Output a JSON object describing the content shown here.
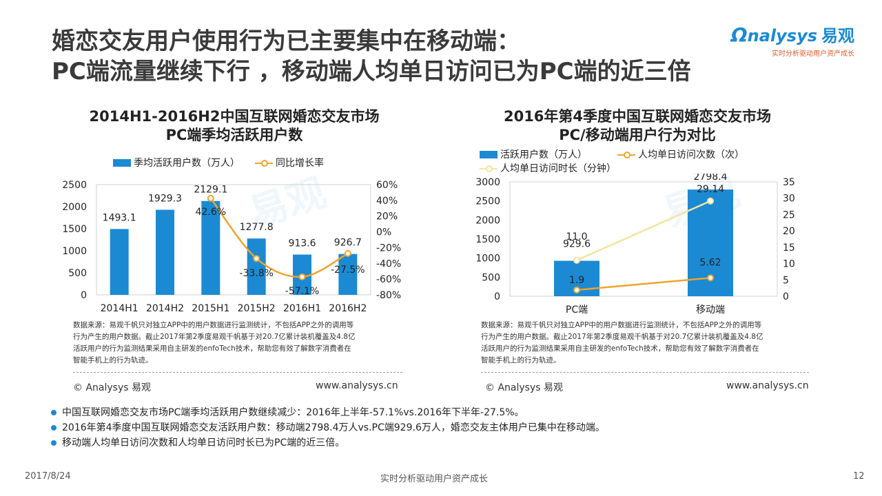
{
  "header": {
    "title_line1": "婚恋交友用户使用行为已主要集中在移动端：",
    "title_line2": "PC端流量继续下行 ，移动端人均单日访问已为PC端的近三倍"
  },
  "logo": {
    "name": "nalysys",
    "name_cn": "易观",
    "tagline": "实时分析驱动用户资产成长"
  },
  "watermark": {
    "text": "易观"
  },
  "left_panel": {
    "title_line1": "2014H1-2016H2中国互联网婚恋交友市场",
    "title_line2": "PC端季均活跃用户数",
    "legend_bar": "季均活跃用户数（万人）",
    "legend_line": "同比增长率",
    "source_line1": "数据来源：易观千帆只对独立APP中的用户数据进行监测统计，不包括APP之外的调用等",
    "source_line2": "行为产生的用户数据。截止2017年第2季度易观千帆基于对20.7亿累计装机覆盖及4.8亿",
    "source_line3": "活跃用户的行为监测结果采用自主研发的enfoTech技术，帮助您有效了解数字消费者在",
    "source_line4": "智能手机上的行为轨迹。",
    "credit_left": "© Analysys 易观",
    "credit_right": "www.analysys.cn"
  },
  "right_panel": {
    "title_line1": "2016年第4季度中国互联网婚恋交友市场",
    "title_line2": "PC/移动端用户行为对比",
    "legend_bar": "活跃用户数（万人）",
    "legend_line1": "人均单日访问次数（次）",
    "legend_line2": "人均单日访问时长（分钟）",
    "source_line1": "数据来源：易观千帆只对独立APP中的用户数据进行监测统计，不包括APP之外的调用等",
    "source_line2": "行为产生的用户数据。截止2017年第2季度易观千帆基于对20.7亿累计装机覆盖及4.8亿",
    "source_line3": "活跃用户的行为监测结果采用自主研发的enfoTech技术，帮助您有效了解数字消费者在",
    "source_line4": "智能手机上的行为轨迹。",
    "credit_left": "© Analysys 易观",
    "credit_right": "www.analysys.cn"
  },
  "chart_data": [
    {
      "type": "bar",
      "title": "2014H1-2016H2中国互联网婚恋交友市场 PC端季均活跃用户数",
      "categories": [
        "2014H1",
        "2014H2",
        "2015H1",
        "2015H2",
        "2016H1",
        "2016H2"
      ],
      "series": [
        {
          "name": "季均活跃用户数（万人）",
          "chart": "bar",
          "axis": "left",
          "values": [
            1493.1,
            1929.3,
            2129.1,
            1277.8,
            913.6,
            926.7
          ],
          "labels": [
            "1493.1",
            "1929.3",
            "2129.1",
            "1277.8",
            "913.6",
            "926.7"
          ],
          "color": "#1b8ad3"
        },
        {
          "name": "同比增长率",
          "chart": "line",
          "axis": "right",
          "values": [
            null,
            null,
            42.6,
            -33.8,
            -57.1,
            -27.5
          ],
          "labels": [
            "",
            "",
            "42.6%",
            "-33.8%",
            "-57.1%",
            "-27.5%"
          ],
          "color": "#f0a32a"
        }
      ],
      "y_left": {
        "min": 0,
        "max": 2500,
        "ticks": [
          "0",
          "500",
          "1000",
          "1500",
          "2000",
          "2500"
        ]
      },
      "y_right": {
        "min": -80,
        "max": 60,
        "ticks": [
          "-80%",
          "-60%",
          "-40%",
          "-20%",
          "0%",
          "20%",
          "40%",
          "60%"
        ]
      }
    },
    {
      "type": "bar",
      "title": "2016年第4季度中国互联网婚恋交友市场 PC/移动端用户行为对比",
      "categories": [
        "PC端",
        "移动端"
      ],
      "series": [
        {
          "name": "活跃用户数（万人）",
          "chart": "bar",
          "axis": "left",
          "values": [
            929.6,
            2798.4
          ],
          "labels": [
            "929.6",
            "2798.4"
          ],
          "color": "#1b8ad3"
        },
        {
          "name": "人均单日访问次数（次）",
          "chart": "line",
          "axis": "right",
          "values": [
            1.9,
            5.62
          ],
          "labels": [
            "1.9",
            "5.62"
          ],
          "color": "#f0a32a"
        },
        {
          "name": "人均单日访问时长（分钟）",
          "chart": "line",
          "axis": "right",
          "values": [
            11.0,
            29.14
          ],
          "labels": [
            "11.0",
            "29.14"
          ],
          "color": "#f4e3a0"
        }
      ],
      "y_left": {
        "min": 0,
        "max": 3000,
        "ticks": [
          "0",
          "500",
          "1000",
          "1500",
          "2000",
          "2500",
          "3000"
        ]
      },
      "y_right": {
        "min": 0,
        "max": 35,
        "ticks": [
          "0",
          "5",
          "10",
          "15",
          "20",
          "25",
          "30",
          "35"
        ]
      }
    }
  ],
  "bullets": [
    "中国互联网婚恋交友市场PC端季均活跃用户数继续减少：2016年上半年-57.1%vs.2016年下半年-27.5%。",
    "2016年第4季度中国互联网婚恋交友活跃用户数：移动端2798.4万人vs.PC端929.6万人，婚恋交友主体用户已集中在移动端。",
    "移动端人均单日访问次数和人均单日访问时长已为PC端的近三倍。"
  ],
  "footer": {
    "date": "2017/8/24",
    "center": "实时分析驱动用户资产成长",
    "page": "12"
  }
}
